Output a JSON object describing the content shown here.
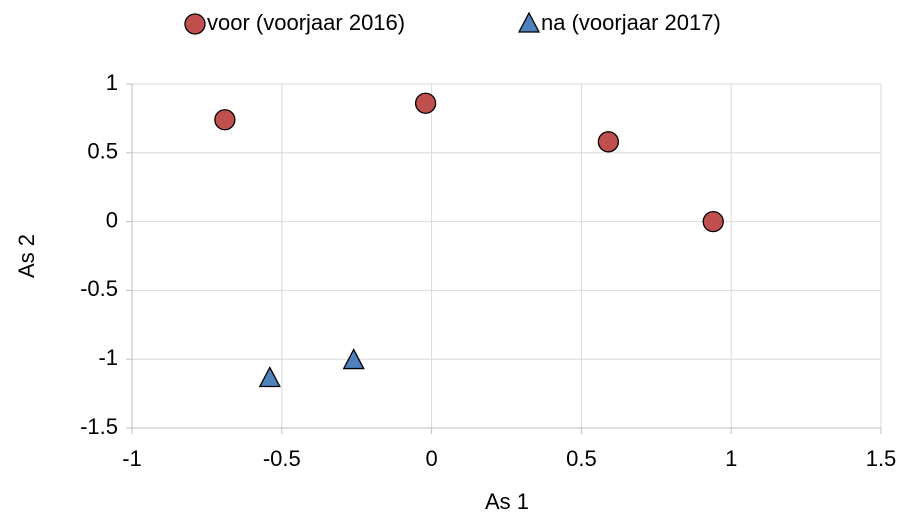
{
  "chart_data": {
    "type": "scatter",
    "x_label": "As 1",
    "y_label": "As 2",
    "series": [
      {
        "name": "voor (voorjaar 2016)",
        "color": "#c0504d",
        "marker": "circle",
        "x": [
          -0.69,
          -0.02,
          0.59,
          0.94
        ],
        "values": [
          0.74,
          0.86,
          0.58,
          0
        ]
      },
      {
        "name": "na (voorjaar 2017)",
        "color": "#4f81bd",
        "marker": "triangle",
        "x": [
          -0.54,
          -0.26
        ],
        "values": [
          -1.14,
          -1.01
        ]
      }
    ],
    "xlim": [
      -1,
      1.5
    ],
    "xticks": [
      -1,
      -0.5,
      0,
      0.5,
      1,
      1.5
    ],
    "ylim": [
      -1.5,
      1
    ],
    "yticks": [
      -1.5,
      -1,
      -0.5,
      0,
      0.5,
      1
    ],
    "grid": true,
    "legend": "top"
  }
}
